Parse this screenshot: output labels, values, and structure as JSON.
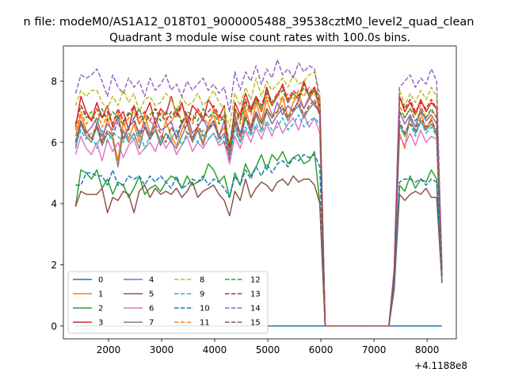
{
  "chart_data": {
    "type": "line",
    "suptitle": "n file: modeM0/AS1A12_018T01_9000005488_39538cztM0_level2_quad_clean",
    "title": "Quadrant 3 module wise count rates with 100.0s bins.",
    "xlabel": "",
    "ylabel": "",
    "x_offset_label": "+4.1188e8",
    "xlim": [
      1150,
      8550
    ],
    "ylim": [
      -0.42,
      9.15
    ],
    "xticks": [
      2000,
      3000,
      4000,
      5000,
      6000,
      7000,
      8000
    ],
    "yticks": [
      0,
      2,
      4,
      6,
      8
    ],
    "grid": false,
    "legend_position": "lower-left",
    "legend_columns": 4,
    "x": [
      1380,
      1480,
      1580,
      1680,
      1780,
      1880,
      1980,
      2080,
      2180,
      2280,
      2380,
      2480,
      2580,
      2680,
      2780,
      2880,
      2980,
      3080,
      3180,
      3280,
      3380,
      3480,
      3580,
      3680,
      3780,
      3880,
      3980,
      4080,
      4180,
      4280,
      4380,
      4480,
      4580,
      4680,
      4780,
      4880,
      4980,
      5080,
      5180,
      5280,
      5380,
      5480,
      5580,
      5680,
      5780,
      5880,
      5980,
      6080,
      6180,
      6280,
      6380,
      6480,
      6580,
      6680,
      6780,
      6880,
      6980,
      7080,
      7180,
      7280,
      7380,
      7480,
      7580,
      7680,
      7780,
      7880,
      7980,
      8080,
      8180,
      8280
    ],
    "series": [
      {
        "name": "0",
        "color": "#1f77b4",
        "dashed": false,
        "values": [
          0,
          0,
          0,
          0,
          0,
          0,
          0,
          0,
          0,
          0,
          0,
          0,
          0,
          0,
          0,
          0,
          0,
          0,
          0,
          0,
          0,
          0,
          0,
          0,
          0,
          0,
          0,
          0,
          0,
          0,
          0,
          0,
          0,
          0,
          0,
          0,
          0,
          0,
          0,
          0,
          0,
          0,
          0,
          0,
          0,
          0,
          0,
          0,
          0,
          0,
          0,
          0,
          0,
          0,
          0,
          0,
          0,
          0,
          0,
          0,
          0,
          0,
          0,
          0,
          0,
          0,
          0,
          0,
          0,
          0
        ]
      },
      {
        "name": "1",
        "color": "#ff7f0e",
        "dashed": false,
        "values": [
          6.2,
          6.9,
          6.4,
          6.1,
          6.6,
          6.0,
          6.8,
          6.2,
          5.4,
          6.7,
          6.1,
          6.6,
          6.0,
          6.9,
          6.3,
          6.5,
          6.0,
          6.7,
          6.2,
          5.9,
          6.4,
          6.8,
          6.1,
          6.5,
          6.0,
          6.6,
          6.9,
          6.2,
          6.5,
          5.6,
          6.8,
          6.2,
          7.1,
          6.5,
          7.3,
          6.7,
          7.4,
          6.9,
          7.0,
          7.5,
          6.8,
          7.3,
          7.6,
          7.1,
          7.4,
          7.7,
          7.0,
          0,
          0,
          0,
          0,
          0,
          0,
          0,
          0,
          0,
          0,
          0,
          0,
          0,
          1.6,
          6.3,
          5.8,
          6.9,
          6.5,
          7.0,
          6.4,
          6.8,
          6.2,
          1.6
        ]
      },
      {
        "name": "2",
        "color": "#2ca02c",
        "dashed": false,
        "values": [
          3.9,
          5.1,
          5.0,
          4.8,
          5.1,
          4.5,
          4.8,
          4.3,
          4.7,
          4.6,
          4.2,
          4.5,
          4.9,
          4.3,
          4.5,
          4.6,
          4.4,
          4.7,
          4.9,
          4.8,
          4.5,
          4.9,
          4.6,
          4.7,
          4.8,
          5.3,
          5.1,
          4.7,
          4.9,
          4.2,
          5.0,
          4.6,
          5.3,
          4.9,
          5.2,
          5.6,
          5.1,
          5.6,
          5.4,
          5.7,
          5.3,
          5.5,
          5.6,
          5.3,
          5.4,
          5.7,
          4.0,
          0,
          0,
          0,
          0,
          0,
          0,
          0,
          0,
          0,
          0,
          0,
          0,
          0,
          1.4,
          4.6,
          4.4,
          4.9,
          4.5,
          4.8,
          4.7,
          5.1,
          4.8,
          1.5
        ]
      },
      {
        "name": "3",
        "color": "#d62728",
        "dashed": false,
        "values": [
          6.5,
          7.5,
          7.0,
          6.7,
          7.3,
          6.8,
          7.2,
          6.5,
          6.8,
          7.0,
          6.4,
          7.2,
          6.6,
          6.9,
          7.3,
          6.6,
          7.1,
          6.9,
          7.5,
          6.9,
          7.3,
          6.6,
          7.2,
          7.0,
          6.7,
          7.4,
          7.1,
          6.8,
          7.2,
          5.4,
          7.3,
          6.9,
          7.6,
          7.1,
          7.5,
          7.0,
          7.8,
          7.2,
          7.5,
          7.9,
          7.3,
          7.6,
          7.4,
          8.0,
          7.5,
          7.8,
          7.1,
          0,
          0,
          0,
          0,
          0,
          0,
          0,
          0,
          0,
          0,
          0,
          0,
          0,
          1.8,
          7.5,
          7.0,
          7.3,
          6.9,
          7.4,
          7.0,
          7.3,
          7.1,
          1.9
        ]
      },
      {
        "name": "4",
        "color": "#9467bd",
        "dashed": false,
        "values": [
          6.0,
          6.7,
          6.3,
          6.5,
          6.8,
          6.2,
          6.6,
          6.4,
          6.9,
          6.1,
          6.5,
          6.7,
          6.3,
          6.6,
          6.2,
          6.8,
          6.4,
          6.5,
          6.7,
          6.1,
          6.6,
          6.9,
          6.3,
          6.5,
          6.8,
          6.4,
          6.6,
          6.2,
          6.7,
          5.5,
          6.9,
          6.3,
          6.8,
          6.5,
          7.0,
          6.6,
          7.1,
          6.8,
          7.3,
          6.9,
          7.2,
          7.0,
          7.4,
          7.1,
          7.5,
          7.2,
          7.0,
          0,
          0,
          0,
          0,
          0,
          0,
          0,
          0,
          0,
          0,
          0,
          0,
          0,
          1.7,
          7.0,
          6.6,
          6.9,
          6.5,
          7.1,
          6.7,
          6.9,
          6.6,
          1.6
        ]
      },
      {
        "name": "5",
        "color": "#8c564b",
        "dashed": false,
        "values": [
          3.9,
          4.4,
          4.3,
          4.3,
          4.3,
          4.5,
          3.7,
          4.2,
          4.1,
          4.4,
          4.3,
          3.7,
          4.4,
          4.6,
          4.2,
          4.5,
          4.3,
          4.4,
          4.3,
          4.5,
          4.2,
          4.4,
          4.7,
          4.2,
          4.4,
          4.5,
          4.6,
          4.3,
          4.1,
          3.6,
          4.4,
          4.1,
          4.8,
          4.2,
          4.5,
          4.7,
          4.6,
          4.4,
          4.7,
          4.8,
          4.6,
          4.9,
          4.7,
          4.8,
          4.8,
          4.6,
          4.0,
          0,
          0,
          0,
          0,
          0,
          0,
          0,
          0,
          0,
          0,
          0,
          0,
          0,
          1.2,
          4.3,
          4.1,
          4.3,
          4.4,
          4.3,
          4.5,
          4.2,
          4.2,
          1.4
        ]
      },
      {
        "name": "6",
        "color": "#e377c2",
        "dashed": false,
        "values": [
          5.6,
          6.2,
          5.8,
          5.6,
          6.0,
          5.4,
          6.1,
          5.7,
          6.0,
          5.5,
          5.9,
          6.1,
          5.6,
          5.8,
          6.0,
          5.7,
          6.2,
          5.8,
          6.1,
          5.6,
          5.9,
          6.2,
          5.7,
          6.0,
          5.8,
          6.1,
          6.3,
          5.9,
          6.0,
          5.3,
          6.2,
          5.8,
          6.4,
          6.0,
          6.5,
          6.1,
          6.6,
          6.2,
          6.7,
          6.3,
          6.6,
          6.8,
          6.4,
          6.9,
          6.5,
          6.8,
          6.3,
          0,
          0,
          0,
          0,
          0,
          0,
          0,
          0,
          0,
          0,
          0,
          0,
          0,
          1.5,
          6.2,
          5.9,
          6.3,
          5.9,
          6.4,
          6.0,
          6.2,
          6.1,
          1.5
        ]
      },
      {
        "name": "7",
        "color": "#7f7f7f",
        "dashed": false,
        "values": [
          5.8,
          6.6,
          6.2,
          6.0,
          6.5,
          5.9,
          6.3,
          6.1,
          5.2,
          6.4,
          6.0,
          6.3,
          5.8,
          6.5,
          6.1,
          6.4,
          5.9,
          6.3,
          6.0,
          5.8,
          6.2,
          6.6,
          6.0,
          6.4,
          5.9,
          6.5,
          6.7,
          6.1,
          6.3,
          5.5,
          6.6,
          6.0,
          6.8,
          6.3,
          6.9,
          6.4,
          7.0,
          6.6,
          6.9,
          7.1,
          6.7,
          7.0,
          7.2,
          6.8,
          7.1,
          7.3,
          6.9,
          0,
          0,
          0,
          0,
          0,
          0,
          0,
          0,
          0,
          0,
          0,
          0,
          0,
          1.6,
          6.6,
          6.2,
          6.8,
          6.3,
          6.7,
          6.4,
          6.6,
          6.3,
          1.6
        ]
      },
      {
        "name": "8",
        "color": "#bcbd22",
        "dashed": true,
        "values": [
          7.2,
          7.7,
          7.5,
          7.7,
          7.7,
          7.3,
          7.1,
          7.5,
          7.2,
          7.7,
          7.3,
          7.6,
          7.0,
          7.4,
          7.5,
          7.2,
          7.3,
          7.6,
          7.4,
          7.0,
          7.5,
          7.2,
          7.3,
          7.6,
          7.2,
          7.4,
          7.7,
          7.3,
          7.1,
          6.5,
          7.6,
          7.2,
          7.8,
          7.4,
          8.1,
          7.5,
          8.0,
          7.7,
          7.9,
          8.1,
          7.8,
          8.2,
          7.9,
          8.0,
          8.2,
          8.3,
          7.6,
          0,
          0,
          0,
          0,
          0,
          0,
          0,
          0,
          0,
          0,
          0,
          0,
          0,
          1.8,
          7.7,
          7.2,
          7.6,
          7.3,
          7.7,
          7.4,
          7.8,
          7.5,
          1.8
        ]
      },
      {
        "name": "9",
        "color": "#17becf",
        "dashed": true,
        "values": [
          5.9,
          6.4,
          6.1,
          6.3,
          5.8,
          6.4,
          6.0,
          6.3,
          6.2,
          6.0,
          6.3,
          6.1,
          6.4,
          5.8,
          6.2,
          6.4,
          6.0,
          6.3,
          6.1,
          6.4,
          5.9,
          6.3,
          6.2,
          6.0,
          6.4,
          6.1,
          6.3,
          6.0,
          6.2,
          5.5,
          6.4,
          6.0,
          6.5,
          6.2,
          6.6,
          6.3,
          6.7,
          6.4,
          6.5,
          6.8,
          6.4,
          6.6,
          6.9,
          6.5,
          6.7,
          6.8,
          6.6,
          0,
          0,
          0,
          0,
          0,
          0,
          0,
          0,
          0,
          0,
          0,
          0,
          0,
          1.5,
          6.5,
          6.2,
          6.6,
          6.2,
          6.7,
          6.3,
          6.5,
          6.2,
          1.5
        ]
      },
      {
        "name": "10",
        "color": "#1f77b4",
        "dashed": true,
        "values": [
          4.6,
          4.6,
          5.0,
          5.0,
          4.9,
          4.9,
          4.6,
          5.1,
          4.6,
          4.6,
          4.9,
          4.8,
          4.9,
          4.6,
          4.9,
          4.7,
          4.9,
          4.7,
          4.5,
          4.9,
          4.5,
          4.6,
          4.8,
          4.7,
          4.9,
          4.6,
          4.8,
          4.7,
          4.5,
          4.2,
          4.9,
          4.6,
          5.1,
          4.8,
          5.2,
          4.9,
          5.3,
          5.0,
          5.3,
          5.4,
          5.2,
          5.5,
          5.4,
          5.6,
          5.5,
          5.6,
          5.2,
          0,
          0,
          0,
          0,
          0,
          0,
          0,
          0,
          0,
          0,
          0,
          0,
          0,
          1.3,
          4.7,
          4.8,
          4.8,
          4.7,
          4.8,
          4.6,
          4.8,
          4.7,
          1.5
        ]
      },
      {
        "name": "11",
        "color": "#ff7f0e",
        "dashed": true,
        "values": [
          6.4,
          7.0,
          6.6,
          6.8,
          7.1,
          6.5,
          6.9,
          6.6,
          7.0,
          6.5,
          6.8,
          7.0,
          6.6,
          6.9,
          6.7,
          6.5,
          7.0,
          6.8,
          6.6,
          7.1,
          6.7,
          6.9,
          6.6,
          7.0,
          6.8,
          6.6,
          7.1,
          6.7,
          6.9,
          5.7,
          7.0,
          6.6,
          7.2,
          6.9,
          7.4,
          7.0,
          7.5,
          7.2,
          7.6,
          7.3,
          7.6,
          7.4,
          7.7,
          7.5,
          7.8,
          7.6,
          7.2,
          0,
          0,
          0,
          0,
          0,
          0,
          0,
          0,
          0,
          0,
          0,
          0,
          0,
          1.7,
          7.2,
          6.8,
          7.1,
          6.9,
          7.2,
          6.8,
          7.0,
          6.9,
          1.7
        ]
      },
      {
        "name": "12",
        "color": "#2ca02c",
        "dashed": true,
        "values": [
          6.6,
          7.2,
          6.8,
          7.0,
          6.6,
          7.1,
          6.7,
          7.0,
          6.8,
          6.6,
          7.0,
          6.8,
          7.1,
          6.6,
          6.9,
          7.1,
          6.7,
          7.0,
          6.8,
          7.1,
          6.6,
          7.0,
          6.9,
          6.7,
          7.1,
          6.8,
          7.0,
          6.6,
          6.9,
          5.9,
          7.1,
          6.7,
          7.3,
          7.0,
          7.4,
          7.1,
          7.6,
          7.2,
          7.5,
          7.7,
          7.3,
          7.6,
          7.4,
          7.8,
          7.5,
          7.7,
          7.3,
          0,
          0,
          0,
          0,
          0,
          0,
          0,
          0,
          0,
          0,
          0,
          0,
          0,
          1.7,
          7.0,
          6.8,
          7.1,
          6.7,
          7.0,
          6.8,
          7.1,
          6.8,
          1.7
        ]
      },
      {
        "name": "13",
        "color": "#d62728",
        "dashed": true,
        "values": [
          6.6,
          7.2,
          6.9,
          6.7,
          7.1,
          6.8,
          7.0,
          6.6,
          7.1,
          6.7,
          6.9,
          7.2,
          6.8,
          7.0,
          6.7,
          7.1,
          6.9,
          6.7,
          7.0,
          6.8,
          7.2,
          6.9,
          6.7,
          7.1,
          6.8,
          7.0,
          7.2,
          6.9,
          6.7,
          5.8,
          7.1,
          6.8,
          7.4,
          7.0,
          7.5,
          7.2,
          7.7,
          7.3,
          7.6,
          7.8,
          7.4,
          7.7,
          7.5,
          7.9,
          7.6,
          7.8,
          7.4,
          0,
          0,
          0,
          0,
          0,
          0,
          0,
          0,
          0,
          0,
          0,
          0,
          0,
          1.8,
          7.5,
          7.1,
          7.4,
          7.0,
          7.3,
          7.1,
          7.4,
          7.1,
          1.8
        ]
      },
      {
        "name": "14",
        "color": "#9467bd",
        "dashed": true,
        "values": [
          7.6,
          8.2,
          8.1,
          8.2,
          8.4,
          8.0,
          7.5,
          8.2,
          7.8,
          7.6,
          8.1,
          7.8,
          8.0,
          7.5,
          8.1,
          7.7,
          7.9,
          8.2,
          7.7,
          7.9,
          7.5,
          8.0,
          7.7,
          7.9,
          8.1,
          7.7,
          7.9,
          7.6,
          7.8,
          7.0,
          8.3,
          7.7,
          8.3,
          8.0,
          8.5,
          7.9,
          8.4,
          8.1,
          8.7,
          8.2,
          8.4,
          8.1,
          8.6,
          8.3,
          8.5,
          8.4,
          7.3,
          0,
          0,
          0,
          0,
          0,
          0,
          0,
          0,
          0,
          0,
          0,
          0,
          0,
          1.9,
          7.8,
          8.0,
          8.2,
          7.8,
          8.1,
          7.9,
          8.4,
          8.0,
          1.9
        ]
      },
      {
        "name": "15",
        "color": "#8c564b",
        "dashed": true,
        "values": [
          6.0,
          6.7,
          6.3,
          6.1,
          6.6,
          6.0,
          6.4,
          6.2,
          6.7,
          6.1,
          6.5,
          6.8,
          6.2,
          6.5,
          6.1,
          6.6,
          6.3,
          6.0,
          6.5,
          6.2,
          6.7,
          6.3,
          6.1,
          6.6,
          6.2,
          6.4,
          6.7,
          6.2,
          6.0,
          5.6,
          6.7,
          6.2,
          6.9,
          6.4,
          7.0,
          6.6,
          7.1,
          6.8,
          7.0,
          7.2,
          6.8,
          7.1,
          7.3,
          6.9,
          7.2,
          7.4,
          6.9,
          0,
          0,
          0,
          0,
          0,
          0,
          0,
          0,
          0,
          0,
          0,
          0,
          0,
          1.6,
          6.7,
          6.3,
          6.6,
          6.4,
          6.8,
          6.5,
          6.7,
          6.4,
          1.6
        ]
      }
    ]
  }
}
